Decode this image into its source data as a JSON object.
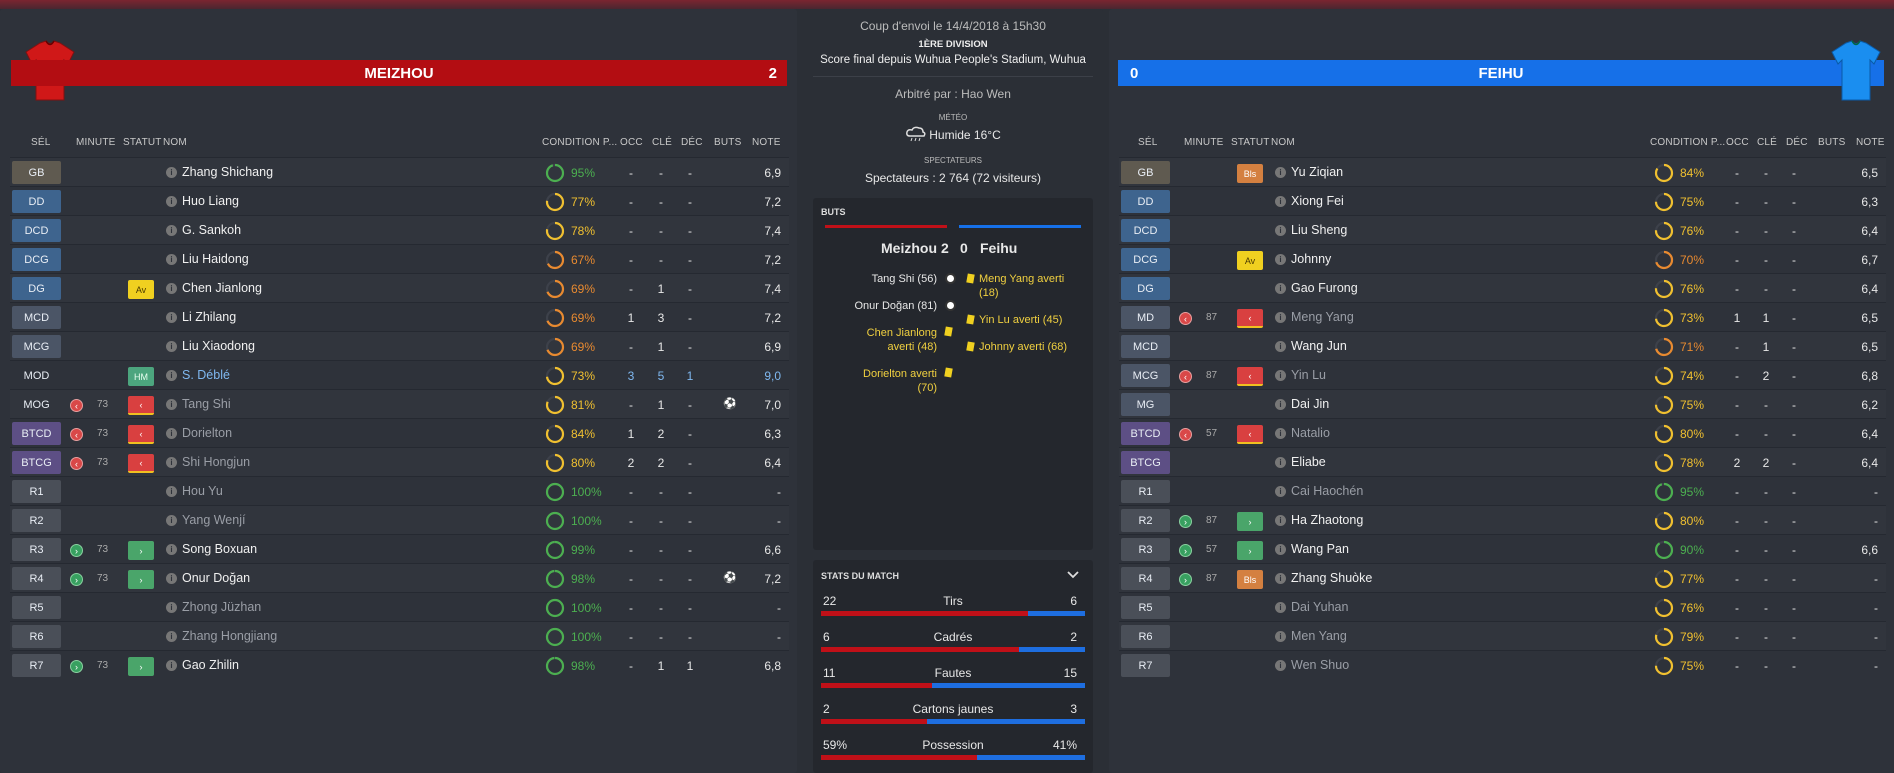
{
  "match": {
    "kickoff": "Coup d'envoi le 14/4/2018 à 15h30",
    "division": "1ÈRE DIVISION",
    "final_score": "Score final depuis Wuhua People's Stadium, Wuhua",
    "referee": "Arbitré par : Hao Wen",
    "weather_label": "MÉTÉO",
    "weather": "Humide 16°C",
    "spectators_label": "SPECTATEURS",
    "spectators": "Spectateurs : 2 764 (72 visiteurs)"
  },
  "headers": {
    "sel": "SÉL",
    "minute": "MINUTE",
    "statut": "STATUT",
    "nom": "NOM",
    "condition": "CONDITION P...",
    "occ": "OCC",
    "cle": "CLÉ",
    "dec": "DÉC",
    "buts": "BUTS",
    "note": "NOTE"
  },
  "home": {
    "name": "MEIZHOU",
    "score": "2",
    "color": "#b30d12",
    "players": [
      {
        "pos": "GB",
        "posc": "gk",
        "sub": "",
        "minute": "",
        "status": "",
        "name": "Zhang Shichang",
        "cond": 95,
        "condtxt": "95%",
        "occ": "-",
        "cle": "-",
        "dec": "-",
        "goal": false,
        "note": "6,9",
        "style": ""
      },
      {
        "pos": "DD",
        "posc": "def",
        "sub": "",
        "minute": "",
        "status": "",
        "name": "Huo Liang",
        "cond": 77,
        "condtxt": "77%",
        "occ": "-",
        "cle": "-",
        "dec": "-",
        "goal": false,
        "note": "7,2",
        "style": ""
      },
      {
        "pos": "DCD",
        "posc": "def",
        "sub": "",
        "minute": "",
        "status": "",
        "name": "G. Sankoh",
        "cond": 78,
        "condtxt": "78%",
        "occ": "-",
        "cle": "-",
        "dec": "-",
        "goal": false,
        "note": "7,4",
        "style": ""
      },
      {
        "pos": "DCG",
        "posc": "def",
        "sub": "",
        "minute": "",
        "status": "",
        "name": "Liu Haidong",
        "cond": 67,
        "condtxt": "67%",
        "occ": "-",
        "cle": "-",
        "dec": "-",
        "goal": false,
        "note": "7,2",
        "style": ""
      },
      {
        "pos": "DG",
        "posc": "def",
        "sub": "",
        "minute": "",
        "status": "Av",
        "name": "Chen Jianlong",
        "cond": 69,
        "condtxt": "69%",
        "occ": "-",
        "cle": "1",
        "dec": "-",
        "goal": false,
        "note": "7,4",
        "style": ""
      },
      {
        "pos": "MCD",
        "posc": "mid",
        "sub": "",
        "minute": "",
        "status": "",
        "name": "Li Zhilang",
        "cond": 69,
        "condtxt": "69%",
        "occ": "1",
        "cle": "3",
        "dec": "-",
        "goal": false,
        "note": "7,2",
        "style": ""
      },
      {
        "pos": "MCG",
        "posc": "mid",
        "sub": "",
        "minute": "",
        "status": "",
        "name": "Liu Xiaodong",
        "cond": 69,
        "condtxt": "69%",
        "occ": "-",
        "cle": "1",
        "dec": "-",
        "goal": false,
        "note": "6,9",
        "style": ""
      },
      {
        "pos": "MOD",
        "posc": "none",
        "sub": "",
        "minute": "",
        "status": "HM",
        "name": "S. Déblé",
        "cond": 73,
        "condtxt": "73%",
        "occ": "3",
        "cle": "5",
        "dec": "1",
        "goal": false,
        "note": "9,0",
        "style": "hl"
      },
      {
        "pos": "MOG",
        "posc": "none",
        "sub": "off",
        "minute": "73",
        "status": "out",
        "name": "Tang Shi",
        "cond": 81,
        "condtxt": "81%",
        "occ": "-",
        "cle": "1",
        "dec": "-",
        "goal": true,
        "note": "7,0",
        "style": "dim"
      },
      {
        "pos": "BTCD",
        "posc": "att",
        "sub": "off",
        "minute": "73",
        "status": "out",
        "name": "Dorielton",
        "cond": 84,
        "condtxt": "84%",
        "occ": "1",
        "cle": "2",
        "dec": "-",
        "goal": false,
        "note": "6,3",
        "style": "dim"
      },
      {
        "pos": "BTCG",
        "posc": "att",
        "sub": "off",
        "minute": "73",
        "status": "out",
        "name": "Shi Hongjun",
        "cond": 80,
        "condtxt": "80%",
        "occ": "2",
        "cle": "2",
        "dec": "-",
        "goal": false,
        "note": "6,4",
        "style": "dim"
      },
      {
        "pos": "R1",
        "posc": "res",
        "sub": "",
        "minute": "",
        "status": "",
        "name": "Hou Yu",
        "cond": 100,
        "condtxt": "100%",
        "occ": "-",
        "cle": "-",
        "dec": "-",
        "goal": false,
        "note": "-",
        "style": "dim"
      },
      {
        "pos": "R2",
        "posc": "res",
        "sub": "",
        "minute": "",
        "status": "",
        "name": "Yang Wenjí",
        "cond": 100,
        "condtxt": "100%",
        "occ": "-",
        "cle": "-",
        "dec": "-",
        "goal": false,
        "note": "-",
        "style": "dim"
      },
      {
        "pos": "R3",
        "posc": "res",
        "sub": "on",
        "minute": "73",
        "status": "in",
        "name": "Song Boxuan",
        "cond": 99,
        "condtxt": "99%",
        "occ": "-",
        "cle": "-",
        "dec": "-",
        "goal": false,
        "note": "6,6",
        "style": ""
      },
      {
        "pos": "R4",
        "posc": "res",
        "sub": "on",
        "minute": "73",
        "status": "in",
        "name": "Onur Doğan",
        "cond": 98,
        "condtxt": "98%",
        "occ": "-",
        "cle": "-",
        "dec": "-",
        "goal": true,
        "note": "7,2",
        "style": ""
      },
      {
        "pos": "R5",
        "posc": "res",
        "sub": "",
        "minute": "",
        "status": "",
        "name": "Zhong Jüzhan",
        "cond": 100,
        "condtxt": "100%",
        "occ": "-",
        "cle": "-",
        "dec": "-",
        "goal": false,
        "note": "-",
        "style": "dim"
      },
      {
        "pos": "R6",
        "posc": "res",
        "sub": "",
        "minute": "",
        "status": "",
        "name": "Zhang Hongjiang",
        "cond": 100,
        "condtxt": "100%",
        "occ": "-",
        "cle": "-",
        "dec": "-",
        "goal": false,
        "note": "-",
        "style": "dim"
      },
      {
        "pos": "R7",
        "posc": "res",
        "sub": "on",
        "minute": "73",
        "status": "in",
        "name": "Gao Zhilin",
        "cond": 98,
        "condtxt": "98%",
        "occ": "-",
        "cle": "1",
        "dec": "1",
        "goal": false,
        "note": "6,8",
        "style": ""
      }
    ]
  },
  "away": {
    "name": "FEIHU",
    "score": "0",
    "color": "#1670e8",
    "players": [
      {
        "pos": "GB",
        "posc": "gk",
        "sub": "",
        "minute": "",
        "status": "Bls",
        "name": "Yu Ziqian",
        "cond": 84,
        "condtxt": "84%",
        "occ": "-",
        "cle": "-",
        "dec": "-",
        "goal": false,
        "note": "6,5",
        "style": ""
      },
      {
        "pos": "DD",
        "posc": "def",
        "sub": "",
        "minute": "",
        "status": "",
        "name": "Xiong Fei",
        "cond": 75,
        "condtxt": "75%",
        "occ": "-",
        "cle": "-",
        "dec": "-",
        "goal": false,
        "note": "6,3",
        "style": ""
      },
      {
        "pos": "DCD",
        "posc": "def",
        "sub": "",
        "minute": "",
        "status": "",
        "name": "Liu Sheng",
        "cond": 76,
        "condtxt": "76%",
        "occ": "-",
        "cle": "-",
        "dec": "-",
        "goal": false,
        "note": "6,4",
        "style": ""
      },
      {
        "pos": "DCG",
        "posc": "def",
        "sub": "",
        "minute": "",
        "status": "Av",
        "name": "Johnny",
        "cond": 70,
        "condtxt": "70%",
        "occ": "-",
        "cle": "-",
        "dec": "-",
        "goal": false,
        "note": "6,7",
        "style": ""
      },
      {
        "pos": "DG",
        "posc": "def",
        "sub": "",
        "minute": "",
        "status": "",
        "name": "Gao Furong",
        "cond": 76,
        "condtxt": "76%",
        "occ": "-",
        "cle": "-",
        "dec": "-",
        "goal": false,
        "note": "6,4",
        "style": ""
      },
      {
        "pos": "MD",
        "posc": "mid",
        "sub": "off",
        "minute": "87",
        "status": "out",
        "name": "Meng Yang",
        "cond": 73,
        "condtxt": "73%",
        "occ": "1",
        "cle": "1",
        "dec": "-",
        "goal": false,
        "note": "6,5",
        "style": "dim"
      },
      {
        "pos": "MCD",
        "posc": "mid",
        "sub": "",
        "minute": "",
        "status": "",
        "name": "Wang Jun",
        "cond": 71,
        "condtxt": "71%",
        "occ": "-",
        "cle": "1",
        "dec": "-",
        "goal": false,
        "note": "6,5",
        "style": ""
      },
      {
        "pos": "MCG",
        "posc": "mid",
        "sub": "off",
        "minute": "87",
        "status": "out",
        "name": "Yin Lu",
        "cond": 74,
        "condtxt": "74%",
        "occ": "-",
        "cle": "2",
        "dec": "-",
        "goal": false,
        "note": "6,8",
        "style": "dim"
      },
      {
        "pos": "MG",
        "posc": "mid",
        "sub": "",
        "minute": "",
        "status": "",
        "name": "Dai Jin",
        "cond": 75,
        "condtxt": "75%",
        "occ": "-",
        "cle": "-",
        "dec": "-",
        "goal": false,
        "note": "6,2",
        "style": ""
      },
      {
        "pos": "BTCD",
        "posc": "att",
        "sub": "off",
        "minute": "57",
        "status": "out",
        "name": "Natalio",
        "cond": 80,
        "condtxt": "80%",
        "occ": "-",
        "cle": "-",
        "dec": "-",
        "goal": false,
        "note": "6,4",
        "style": "dim"
      },
      {
        "pos": "BTCG",
        "posc": "att",
        "sub": "",
        "minute": "",
        "status": "",
        "name": "Eliabe",
        "cond": 78,
        "condtxt": "78%",
        "occ": "2",
        "cle": "2",
        "dec": "-",
        "goal": false,
        "note": "6,4",
        "style": ""
      },
      {
        "pos": "R1",
        "posc": "res",
        "sub": "",
        "minute": "",
        "status": "",
        "name": "Cai Haochén",
        "cond": 95,
        "condtxt": "95%",
        "occ": "-",
        "cle": "-",
        "dec": "-",
        "goal": false,
        "note": "-",
        "style": "dim"
      },
      {
        "pos": "R2",
        "posc": "res",
        "sub": "on",
        "minute": "87",
        "status": "in",
        "name": "Ha Zhaotong",
        "cond": 80,
        "condtxt": "80%",
        "occ": "-",
        "cle": "-",
        "dec": "-",
        "goal": false,
        "note": "-",
        "style": ""
      },
      {
        "pos": "R3",
        "posc": "res",
        "sub": "on",
        "minute": "57",
        "status": "in",
        "name": "Wang Pan",
        "cond": 90,
        "condtxt": "90%",
        "occ": "-",
        "cle": "-",
        "dec": "-",
        "goal": false,
        "note": "6,6",
        "style": ""
      },
      {
        "pos": "R4",
        "posc": "res",
        "sub": "on",
        "minute": "87",
        "status": "Bls",
        "name": "Zhang Shuòke",
        "cond": 77,
        "condtxt": "77%",
        "occ": "-",
        "cle": "-",
        "dec": "-",
        "goal": false,
        "note": "-",
        "style": ""
      },
      {
        "pos": "R5",
        "posc": "res",
        "sub": "",
        "minute": "",
        "status": "",
        "name": "Dai Yuhan",
        "cond": 76,
        "condtxt": "76%",
        "occ": "-",
        "cle": "-",
        "dec": "-",
        "goal": false,
        "note": "-",
        "style": "dim"
      },
      {
        "pos": "R6",
        "posc": "res",
        "sub": "",
        "minute": "",
        "status": "",
        "name": "Men Yang",
        "cond": 79,
        "condtxt": "79%",
        "occ": "-",
        "cle": "-",
        "dec": "-",
        "goal": false,
        "note": "-",
        "style": "dim"
      },
      {
        "pos": "R7",
        "posc": "res",
        "sub": "",
        "minute": "",
        "status": "",
        "name": "Wen Shuo",
        "cond": 75,
        "condtxt": "75%",
        "occ": "-",
        "cle": "-",
        "dec": "-",
        "goal": false,
        "note": "-",
        "style": "dim"
      }
    ]
  },
  "goals_card": {
    "title": "BUTS",
    "home_name": "Meizhou",
    "home_score": "2",
    "away_score": "0",
    "away_name": "Feihu",
    "home_events": [
      {
        "text": "Tang Shi (56)",
        "type": "goal"
      },
      {
        "text": "Onur Doğan (81)",
        "type": "goal"
      },
      {
        "text": "Chen Jianlong averti (48)",
        "type": "yellow"
      },
      {
        "text": "Dorielton averti (70)",
        "type": "yellow"
      }
    ],
    "away_events": [
      {
        "text": "Meng Yang averti (18)",
        "type": "yellow"
      },
      {
        "text": "Yin Lu averti (45)",
        "type": "yellow"
      },
      {
        "text": "Johnny averti (68)",
        "type": "yellow"
      }
    ]
  },
  "stats_card": {
    "title": "STATS DU MATCH",
    "stats": [
      {
        "label": "Tirs",
        "home": "22",
        "away": "6",
        "home_frac": 0.785
      },
      {
        "label": "Cadrés",
        "home": "6",
        "away": "2",
        "home_frac": 0.75
      },
      {
        "label": "Fautes",
        "home": "11",
        "away": "15",
        "home_frac": 0.42
      },
      {
        "label": "Cartons jaunes",
        "home": "2",
        "away": "3",
        "home_frac": 0.4
      },
      {
        "label": "Possession",
        "home": "59%",
        "away": "41%",
        "home_frac": 0.59
      }
    ]
  }
}
